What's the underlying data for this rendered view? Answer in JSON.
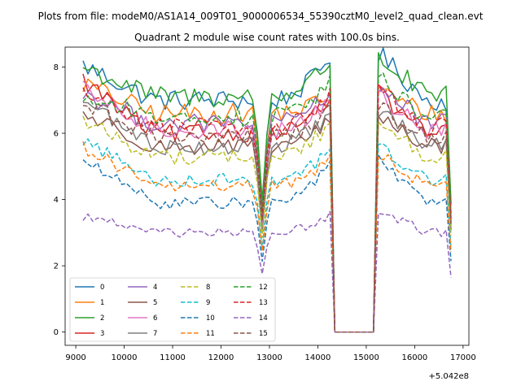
{
  "chart_data": {
    "type": "line",
    "suptitle": "Plots from file: modeM0/AS1A14_009T01_9000006534_55390cztM0_level2_quad_clean.evt",
    "title": "Quadrant 2 module wise count rates with 100.0s bins.",
    "xlabel": "",
    "ylabel": "",
    "x_offset_text": "+5.042e8",
    "xlim": [
      8780,
      17120
    ],
    "ylim": [
      -0.4,
      8.6
    ],
    "xticks": [
      9000,
      10000,
      11000,
      12000,
      13000,
      14000,
      15000,
      16000,
      17000
    ],
    "yticks": [
      0,
      2,
      4,
      6,
      8
    ],
    "legend_location": "lower-left",
    "legend_columns": 4,
    "series": [
      {
        "name": "0",
        "color": "#1f77b4",
        "style": "solid",
        "level": 7.0,
        "start": 8.05,
        "peak": 8.2
      },
      {
        "name": "1",
        "color": "#ff7f0e",
        "style": "solid",
        "level": 6.6,
        "start": 7.5,
        "peak": 7.1
      },
      {
        "name": "2",
        "color": "#2ca02c",
        "style": "solid",
        "level": 7.1,
        "start": 8.0,
        "peak": 8.1
      },
      {
        "name": "3",
        "color": "#d62728",
        "style": "solid",
        "level": 6.0,
        "start": 7.6,
        "peak": 7.0
      },
      {
        "name": "4",
        "color": "#9467bd",
        "style": "solid",
        "level": 6.3,
        "start": 7.2,
        "peak": 7.2
      },
      {
        "name": "5",
        "color": "#8c564b",
        "style": "solid",
        "level": 5.6,
        "start": 6.6,
        "peak": 6.3
      },
      {
        "name": "6",
        "color": "#e377c2",
        "style": "solid",
        "level": 6.1,
        "start": 7.3,
        "peak": 6.9
      },
      {
        "name": "7",
        "color": "#7f7f7f",
        "style": "solid",
        "level": 5.6,
        "start": 7.0,
        "peak": 6.5
      },
      {
        "name": "8",
        "color": "#bcbd22",
        "style": "dashed",
        "level": 5.3,
        "start": 6.4,
        "peak": 6.2
      },
      {
        "name": "9",
        "color": "#17becf",
        "style": "dashed",
        "level": 4.6,
        "start": 5.8,
        "peak": 5.4
      },
      {
        "name": "10",
        "color": "#1f77b4",
        "style": "dashed",
        "level": 3.9,
        "start": 5.2,
        "peak": 5.0
      },
      {
        "name": "11",
        "color": "#ff7f0e",
        "style": "dashed",
        "level": 4.4,
        "start": 5.6,
        "peak": 5.2
      },
      {
        "name": "12",
        "color": "#2ca02c",
        "style": "dashed",
        "level": 6.5,
        "start": 7.1,
        "peak": 7.5
      },
      {
        "name": "13",
        "color": "#d62728",
        "style": "dashed",
        "level": 6.2,
        "start": 7.3,
        "peak": 7.1
      },
      {
        "name": "14",
        "color": "#9467bd",
        "style": "dashed",
        "level": 3.0,
        "start": 3.5,
        "peak": 3.5
      },
      {
        "name": "15",
        "color": "#8c564b",
        "style": "dashed",
        "level": 5.9,
        "start": 6.9,
        "peak": 6.6
      }
    ],
    "segments_note": "data from 9150 to 16750 in 100 s bins; dip near 12850; zero-count gap from 14350 to 15150"
  }
}
